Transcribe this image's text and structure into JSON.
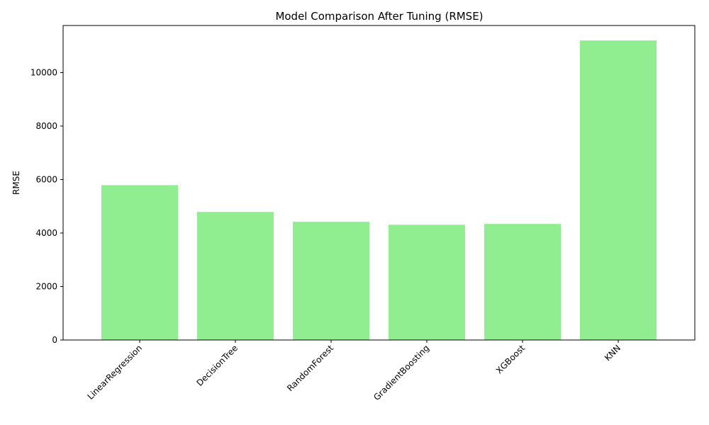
{
  "chart_data": {
    "type": "bar",
    "title": "Model Comparison After Tuning (RMSE)",
    "xlabel": "",
    "ylabel": "RMSE",
    "categories": [
      "LinearRegression",
      "DecisionTree",
      "RandomForest",
      "GradientBoosting",
      "XGBoost",
      "KNN"
    ],
    "values": [
      5790,
      4790,
      4420,
      4310,
      4340,
      11200
    ],
    "ylim": [
      0,
      11760
    ],
    "yticks": [
      0,
      2000,
      4000,
      6000,
      8000,
      10000
    ],
    "ytick_labels": [
      "0",
      "2000",
      "4000",
      "6000",
      "8000",
      "10000"
    ],
    "bar_color": "#90ee90",
    "grid": false,
    "legend": "none",
    "xtick_rotation": 45
  }
}
